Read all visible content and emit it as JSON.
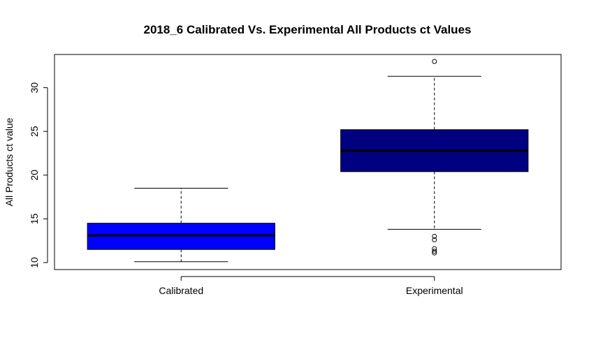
{
  "chart_data": {
    "type": "boxplot",
    "title": "2018_6 Calibrated Vs. Experimental All Products ct Values",
    "xlabel": "",
    "ylabel": "All Products ct value",
    "categories": [
      "Calibrated",
      "Experimental"
    ],
    "y_ticks": [
      10,
      15,
      20,
      25,
      30
    ],
    "ylim": [
      9.2,
      33.8
    ],
    "grid": false,
    "legend": "none",
    "boxes": [
      {
        "category": "Calibrated",
        "whisker_low": 10.1,
        "q1": 11.5,
        "median": 13.1,
        "q3": 14.5,
        "whisker_high": 18.5,
        "outliers": [],
        "fill": "#0000FF"
      },
      {
        "category": "Experimental",
        "whisker_low": 13.8,
        "q1": 20.4,
        "median": 22.8,
        "q3": 25.2,
        "whisker_high": 31.3,
        "outliers": [
          11.1,
          11.3,
          11.6,
          12.6,
          13.0,
          33.0
        ],
        "fill": "#000080"
      }
    ]
  }
}
